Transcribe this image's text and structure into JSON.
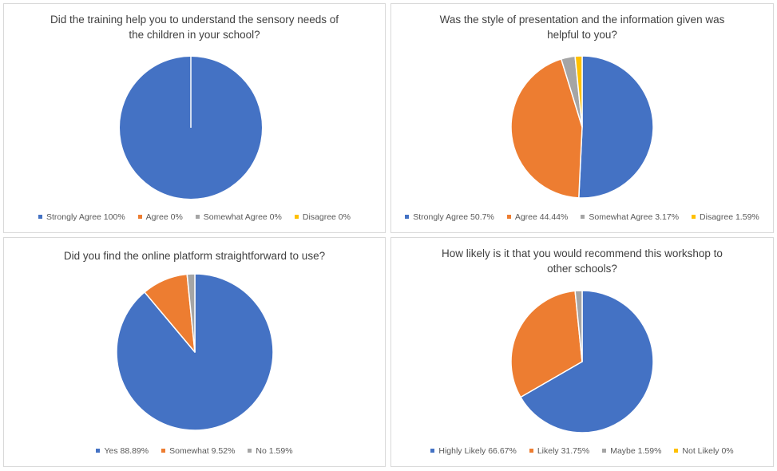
{
  "chart_data": [
    {
      "type": "pie",
      "title": "Did the training help you to understand the sensory needs of the children in your school?",
      "title_lines": [
        "Did the training help you to understand the sensory needs of",
        "the children in your school?"
      ],
      "categories": [
        "Strongly Agree",
        "Agree",
        "Somewhat Agree",
        "Disagree"
      ],
      "values": [
        100,
        0,
        0,
        0
      ],
      "legend_labels": [
        "Strongly Agree 100%",
        "Agree 0%",
        "Somewhat Agree 0%",
        "Disagree 0%"
      ],
      "colors": [
        "#4472c4",
        "#ed7d31",
        "#a5a5a5",
        "#ffc000"
      ],
      "legend": "bottom"
    },
    {
      "type": "pie",
      "title": "Was the style of presentation and the information given was helpful to you?",
      "title_lines": [
        "Was the style of presentation and the information given was",
        "helpful to you?"
      ],
      "categories": [
        "Strongly Agree",
        "Agree",
        "Somewhat Agree",
        "Disagree"
      ],
      "values": [
        50.7,
        44.44,
        3.17,
        1.59
      ],
      "legend_labels": [
        "Strongly Agree 50.7%",
        "Agree 44.44%",
        "Somewhat Agree 3.17%",
        "Disagree 1.59%"
      ],
      "colors": [
        "#4472c4",
        "#ed7d31",
        "#a5a5a5",
        "#ffc000"
      ],
      "legend": "bottom"
    },
    {
      "type": "pie",
      "title": "Did you find the online platform straightforward to use?",
      "title_lines": [
        "Did you find the online platform straightforward to use?"
      ],
      "categories": [
        "Yes",
        "Somewhat",
        "No"
      ],
      "values": [
        88.89,
        9.52,
        1.59
      ],
      "legend_labels": [
        "Yes 88.89%",
        "Somewhat 9.52%",
        "No 1.59%"
      ],
      "colors": [
        "#4472c4",
        "#ed7d31",
        "#a5a5a5"
      ],
      "legend": "bottom"
    },
    {
      "type": "pie",
      "title": "How likely is it that you would recommend this workshop to other schools?",
      "title_lines": [
        "How likely is it that you would recommend this workshop to",
        "other schools?"
      ],
      "categories": [
        "Highly Likely",
        "Likely",
        "Maybe",
        "Not Likely"
      ],
      "values": [
        66.67,
        31.75,
        1.59,
        0
      ],
      "legend_labels": [
        "Highly Likely 66.67%",
        "Likely 31.75%",
        "Maybe 1.59%",
        "Not Likely 0%"
      ],
      "colors": [
        "#4472c4",
        "#ed7d31",
        "#a5a5a5",
        "#ffc000"
      ],
      "legend": "bottom"
    }
  ]
}
